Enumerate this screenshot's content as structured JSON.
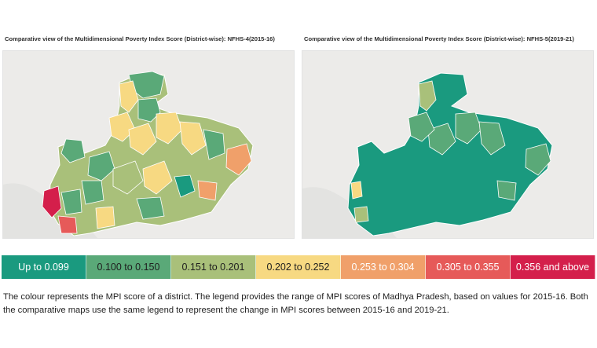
{
  "maps": [
    {
      "id": "nfhs4",
      "title": "Comparative view of the Multidimensional Poverty Index Score (District-wise): NFHS-4(2015-16)"
    },
    {
      "id": "nfhs5",
      "title": "Comparative view of the Multidimensional Poverty Index Score (District-wise): NFHS-5(2019-21)"
    }
  ],
  "legend": [
    {
      "label": "Up to 0.099",
      "color": "#1a9a7f",
      "text": "light"
    },
    {
      "label": "0.100 to 0.150",
      "color": "#5aa978",
      "text": "dark"
    },
    {
      "label": "0.151 to 0.201",
      "color": "#a9c07a",
      "text": "dark"
    },
    {
      "label": "0.202 to 0.252",
      "color": "#f7d982",
      "text": "dark"
    },
    {
      "label": "0.253 to 0.304",
      "color": "#f0a06a",
      "text": "light"
    },
    {
      "label": "0.305 to 0.355",
      "color": "#e65a59",
      "text": "light"
    },
    {
      "label": "0.356 and above",
      "color": "#d41f4b",
      "text": "light"
    }
  ],
  "caption": "The colour represents the MPI score of a district. The legend provides the range of MPI scores of Madhya Pradesh, based on values for 2015-16. Both the comparative maps use the same legend to represent the change in MPI scores between 2015-16 and 2019-21."
}
